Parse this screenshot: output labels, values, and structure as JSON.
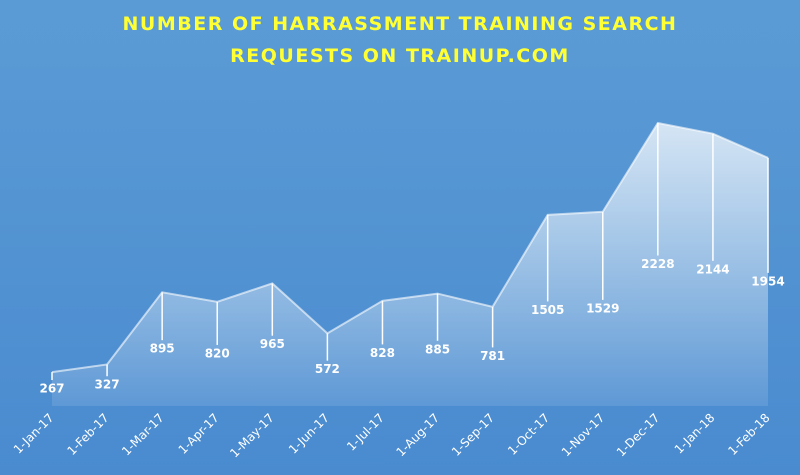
{
  "chart_data": {
    "type": "area",
    "title": "NUMBER OF HARRASSMENT TRAINING SEARCH REQUESTS ON TRAINUP.COM",
    "categories": [
      "1-Jan-17",
      "1-Feb-17",
      "1-Mar-17",
      "1-Apr-17",
      "1-May-17",
      "1-Jun-17",
      "1-Jul-17",
      "1-Aug-17",
      "1-Sep-17",
      "1-Oct-17",
      "1-Nov-17",
      "1-Dec-17",
      "1-Jan-18",
      "1-Feb-18"
    ],
    "values": [
      267,
      327,
      895,
      820,
      965,
      572,
      828,
      885,
      781,
      1505,
      1529,
      2228,
      2144,
      1954
    ],
    "color": "#ffffff"
  }
}
